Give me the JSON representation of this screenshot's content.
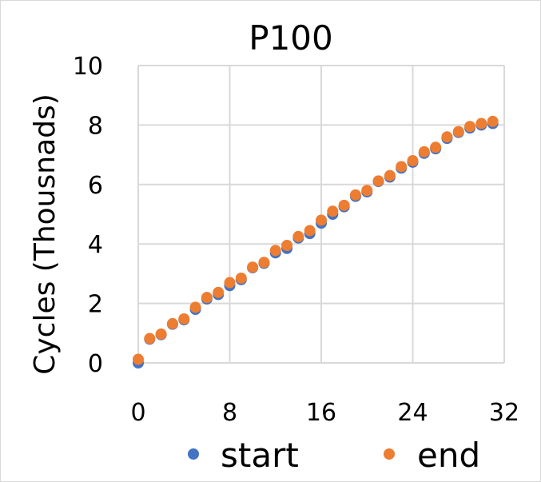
{
  "chart_data": {
    "type": "scatter",
    "title": "P100",
    "xlabel": "",
    "ylabel": "Cycles (Thousnads)",
    "xlim": [
      0,
      32
    ],
    "ylim": [
      0,
      10
    ],
    "x_ticks": [
      "0",
      "8",
      "16",
      "24",
      "32"
    ],
    "y_ticks": [
      "0",
      "2",
      "4",
      "6",
      "8",
      "10"
    ],
    "grid": true,
    "legend_position": "bottom",
    "series": [
      {
        "name": "start",
        "color": "#4472C4",
        "x": [
          0,
          1,
          2,
          3,
          4,
          5,
          6,
          7,
          8,
          9,
          10,
          11,
          12,
          13,
          14,
          15,
          16,
          17,
          18,
          19,
          20,
          21,
          22,
          23,
          24,
          25,
          26,
          27,
          28,
          29,
          30,
          31
        ],
        "y": [
          0.0,
          0.8,
          0.95,
          1.3,
          1.45,
          1.8,
          2.15,
          2.3,
          2.6,
          2.8,
          3.2,
          3.35,
          3.7,
          3.85,
          4.2,
          4.35,
          4.7,
          5.0,
          5.25,
          5.6,
          5.75,
          6.1,
          6.25,
          6.55,
          6.75,
          7.05,
          7.2,
          7.55,
          7.75,
          7.9,
          8.0,
          8.05
        ]
      },
      {
        "name": "end",
        "color": "#ED7D31",
        "x": [
          0,
          1,
          2,
          3,
          4,
          5,
          6,
          7,
          8,
          9,
          10,
          11,
          12,
          13,
          14,
          15,
          16,
          17,
          18,
          19,
          20,
          21,
          22,
          23,
          24,
          25,
          26,
          27,
          28,
          29,
          30,
          31
        ],
        "y": [
          0.12,
          0.82,
          0.97,
          1.32,
          1.48,
          1.87,
          2.2,
          2.37,
          2.7,
          2.85,
          3.22,
          3.38,
          3.78,
          3.95,
          4.25,
          4.45,
          4.8,
          5.1,
          5.3,
          5.65,
          5.8,
          6.12,
          6.3,
          6.6,
          6.8,
          7.1,
          7.25,
          7.6,
          7.78,
          7.95,
          8.05,
          8.12
        ]
      }
    ]
  }
}
